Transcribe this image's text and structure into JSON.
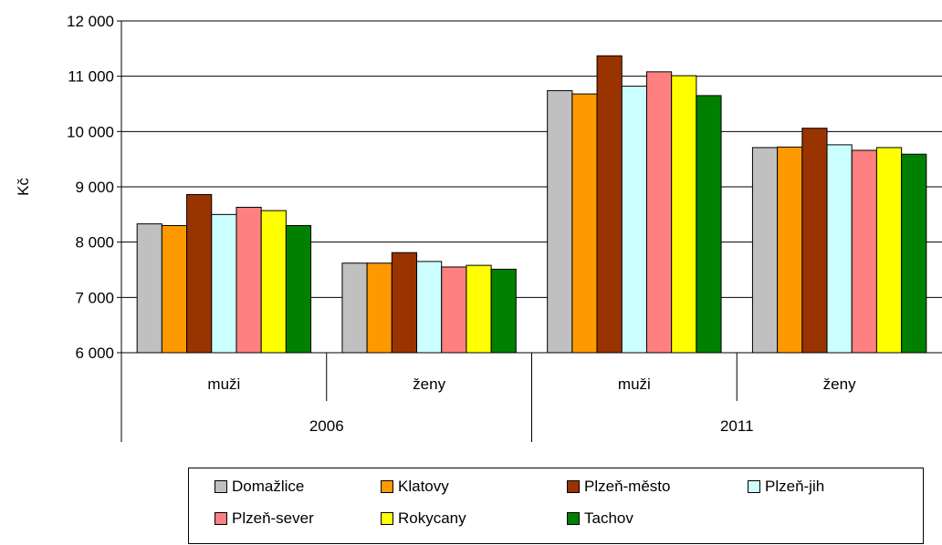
{
  "chart_data": {
    "type": "bar",
    "ylabel": "Kč",
    "ylim": [
      6000,
      12000
    ],
    "yticks": [
      6000,
      7000,
      8000,
      9000,
      10000,
      11000,
      12000
    ],
    "ytick_labels": [
      "6 000",
      "7 000",
      "8 000",
      "9 000",
      "10 000",
      "11 000",
      "12 000"
    ],
    "years": [
      "2006",
      "2011"
    ],
    "categories": [
      "muži",
      "ženy",
      "muži",
      "ženy"
    ],
    "category_year": [
      "2006",
      "2006",
      "2011",
      "2011"
    ],
    "grid": true,
    "legend_position": "bottom",
    "series": [
      {
        "name": "Domažlice",
        "color": "#c0c0c0",
        "values": [
          8330,
          7620,
          10740,
          9710
        ]
      },
      {
        "name": "Klatovy",
        "color": "#ff9900",
        "values": [
          8300,
          7620,
          10680,
          9720
        ]
      },
      {
        "name": "Plzeň-město",
        "color": "#993300",
        "values": [
          8860,
          7810,
          11370,
          10060
        ]
      },
      {
        "name": "Plzeň-jih",
        "color": "#ccffff",
        "values": [
          8500,
          7650,
          10820,
          9760
        ]
      },
      {
        "name": "Plzeň-sever",
        "color": "#ff8080",
        "values": [
          8630,
          7550,
          11080,
          9660
        ]
      },
      {
        "name": "Rokycany",
        "color": "#ffff00",
        "values": [
          8570,
          7580,
          11010,
          9710
        ]
      },
      {
        "name": "Tachov",
        "color": "#008000",
        "values": [
          8300,
          7510,
          10650,
          9590
        ]
      }
    ]
  }
}
